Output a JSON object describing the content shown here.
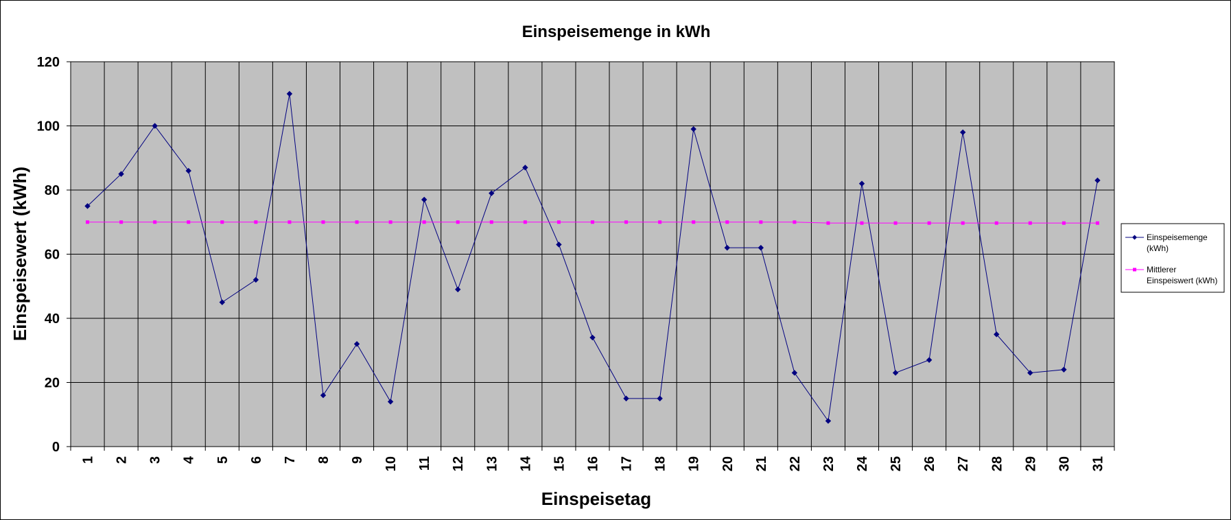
{
  "chart_data": {
    "type": "line",
    "title": "Einspeisemenge in kWh",
    "xlabel": "Einspeisetag",
    "ylabel": "Einspeisewert  (kWh)",
    "categories": [
      "1",
      "2",
      "3",
      "4",
      "5",
      "6",
      "7",
      "8",
      "9",
      "10",
      "11",
      "12",
      "13",
      "14",
      "15",
      "16",
      "17",
      "18",
      "19",
      "20",
      "21",
      "22",
      "23",
      "24",
      "25",
      "26",
      "27",
      "28",
      "29",
      "30",
      "31"
    ],
    "ylim": [
      0,
      120
    ],
    "yticks": [
      "0",
      "20",
      "40",
      "60",
      "80",
      "100",
      "120"
    ],
    "grid": true,
    "legend_position": "right",
    "background_color": "#C0C0C0",
    "series": [
      {
        "name": "Einspeisemenge (kWh)",
        "legend_lines": [
          "Einspeisemenge",
          "(kWh)"
        ],
        "color": "#000080",
        "marker": "diamond",
        "values": [
          75,
          85,
          100,
          86,
          45,
          52,
          110,
          16,
          32,
          14,
          77,
          49,
          79,
          87,
          63,
          34,
          15,
          15,
          99,
          62,
          62,
          23,
          8,
          82,
          23,
          27,
          98,
          35,
          23,
          24,
          83
        ]
      },
      {
        "name": "Mittlerer Einspeiswert (kWh)",
        "legend_lines": [
          "Mittlerer",
          "Einspeiswert (kWh)"
        ],
        "color": "#FF00FF",
        "marker": "square",
        "values": [
          70,
          70,
          70,
          70,
          70,
          70,
          70,
          70,
          70,
          70,
          70,
          70,
          70,
          70,
          70,
          70,
          70,
          70,
          70,
          70,
          70,
          70,
          69.7,
          69.7,
          69.7,
          69.7,
          69.7,
          69.7,
          69.7,
          69.7,
          69.7
        ]
      }
    ]
  }
}
